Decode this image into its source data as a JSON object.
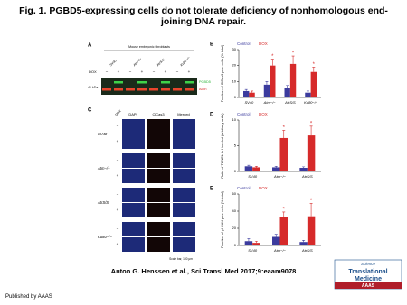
{
  "header": {
    "title": "Fig. 1. PGBD5-expressing cells do not tolerate deficiency of nonhomologous end-joining DNA repair."
  },
  "panel_a": {
    "label": "A",
    "title": "Mouse embryonic fibroblasts",
    "lanes": [
      "SV40",
      "Atm−/−",
      "AtrS/S",
      "Ku80−/−"
    ],
    "row_label": "DOX",
    "doses": [
      "−",
      "+",
      "−",
      "+",
      "−",
      "+",
      "−",
      "+"
    ],
    "marker": "41 kDa",
    "bands": [
      "PGBD5",
      "Actin"
    ]
  },
  "panel_c": {
    "label": "C",
    "dose_label": "DOX",
    "columns": [
      "DAPI",
      "ClCas3",
      "Merged"
    ],
    "rows": [
      {
        "label": "SV40",
        "doses": [
          "−",
          "+"
        ]
      },
      {
        "label": "Atm−/−",
        "doses": [
          "−",
          "+"
        ]
      },
      {
        "label": "AtrS/S",
        "doses": [
          "−",
          "+"
        ]
      },
      {
        "label": "Ku80−/−",
        "doses": [
          "−",
          "+"
        ]
      }
    ],
    "scale_bar": "Scale bar, 100 μm"
  },
  "chart_data": [
    {
      "type": "bar",
      "label": "B",
      "y_label": "Fraction of ClCas3 pos. cells (% total)",
      "categories": [
        "SV40",
        "Atm−/−",
        "AtrS/S",
        "Ku80−/−"
      ],
      "series": [
        {
          "name": "Control",
          "color": "#3b3b9e",
          "values": [
            4,
            8,
            6,
            3
          ],
          "errors": [
            1,
            2,
            1.5,
            1
          ]
        },
        {
          "name": "DOX",
          "color": "#d62a2a",
          "values": [
            3,
            20,
            21,
            16
          ],
          "errors": [
            1,
            4,
            5,
            3
          ]
        }
      ],
      "significance": [
        null,
        "*",
        "*",
        "*"
      ],
      "ylim": [
        0,
        30
      ],
      "yticks": [
        0,
        10,
        20,
        30
      ]
    },
    {
      "type": "bar",
      "label": "D",
      "y_label": "Ratio of TUNEL to Hoechst (arbitrary units)",
      "categories": [
        "SV40",
        "Atm−/−",
        "AtrS/S"
      ],
      "series": [
        {
          "name": "Control",
          "color": "#3b3b9e",
          "values": [
            1,
            0.8,
            0.7
          ],
          "errors": [
            0.2,
            0.2,
            0.2
          ]
        },
        {
          "name": "DOX",
          "color": "#d62a2a",
          "values": [
            0.8,
            6.5,
            7
          ],
          "errors": [
            0.2,
            1.5,
            1.8
          ]
        }
      ],
      "significance": [
        null,
        "*",
        "*"
      ],
      "ylim": [
        0,
        10
      ],
      "yticks": [
        0,
        5,
        10
      ]
    },
    {
      "type": "bar",
      "label": "E",
      "y_label": "Fraction of γH2AX pos. cells (% total)",
      "categories": [
        "SV40",
        "Atm−/−",
        "AtrS/S"
      ],
      "series": [
        {
          "name": "Control",
          "color": "#3b3b9e",
          "values": [
            5,
            10,
            4
          ],
          "errors": [
            3,
            3,
            2
          ]
        },
        {
          "name": "DOX",
          "color": "#d62a2a",
          "values": [
            3,
            33,
            34
          ],
          "errors": [
            2,
            6,
            15
          ]
        }
      ],
      "significance": [
        null,
        "*",
        "*"
      ],
      "ylim": [
        0,
        60
      ],
      "yticks": [
        0,
        20,
        40,
        60
      ]
    }
  ],
  "citation": "Anton G. Henssen et al., Sci Transl Med 2017;9:eaam9078",
  "logo": {
    "line1": "Science",
    "line2": "Translational",
    "line3": "Medicine",
    "org": "AAAS"
  },
  "footer": "Published by AAAS"
}
